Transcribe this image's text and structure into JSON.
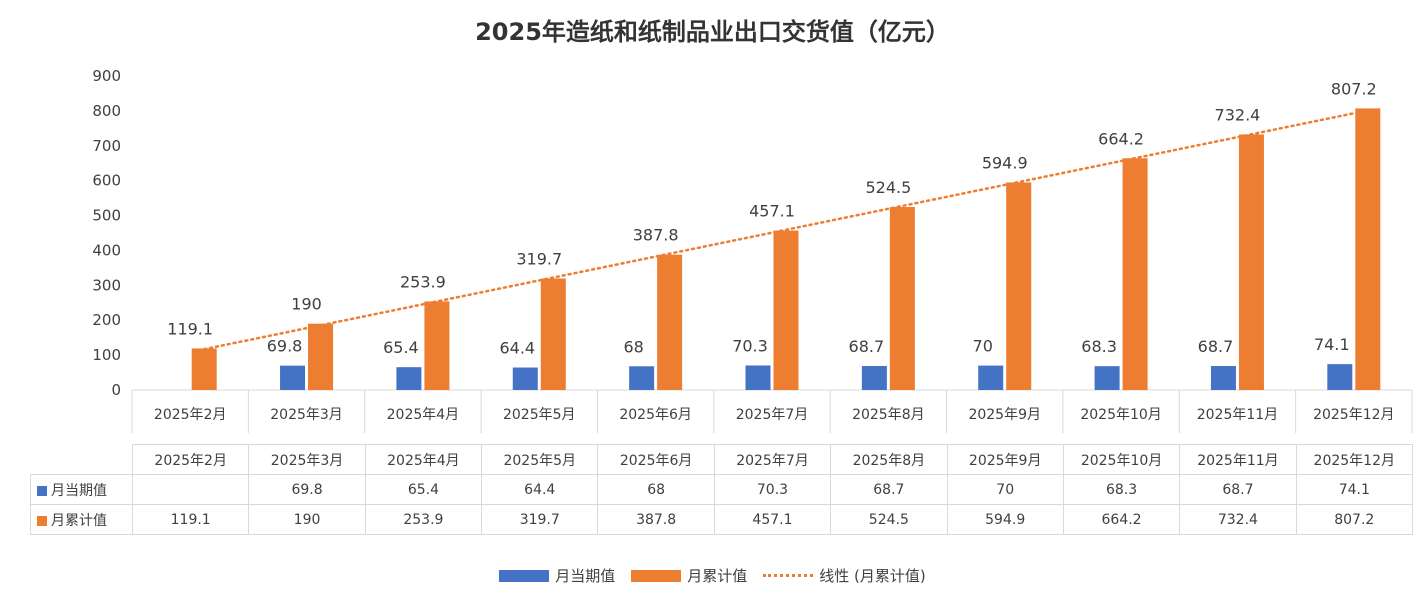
{
  "chart_data": {
    "type": "bar",
    "title": "2025年造纸和纸制品业出口交货值（亿元）",
    "categories": [
      "2025年2月",
      "2025年3月",
      "2025年4月",
      "2025年5月",
      "2025年6月",
      "2025年7月",
      "2025年8月",
      "2025年9月",
      "2025年10月",
      "2025年11月",
      "2025年12月"
    ],
    "series": [
      {
        "name": "月当期值",
        "color": "#4472c4",
        "values": [
          null,
          69.8,
          65.4,
          64.4,
          68,
          70.3,
          68.7,
          70,
          68.3,
          68.7,
          74.1
        ]
      },
      {
        "name": "月累计值",
        "color": "#ed7d31",
        "values": [
          119.1,
          190,
          253.9,
          319.7,
          387.8,
          457.1,
          524.5,
          594.9,
          664.2,
          732.4,
          807.2
        ]
      }
    ],
    "trendline": {
      "name": "线性 (月累计值)",
      "type": "linear",
      "of_series": "月累计值",
      "color": "#ed7d31"
    },
    "ylim": [
      0,
      900
    ],
    "yticks": [
      0,
      100,
      200,
      300,
      400,
      500,
      600,
      700,
      800,
      900
    ],
    "xlabel": "",
    "ylabel": "",
    "grid": false,
    "legend": "bottom",
    "data_table": true
  }
}
